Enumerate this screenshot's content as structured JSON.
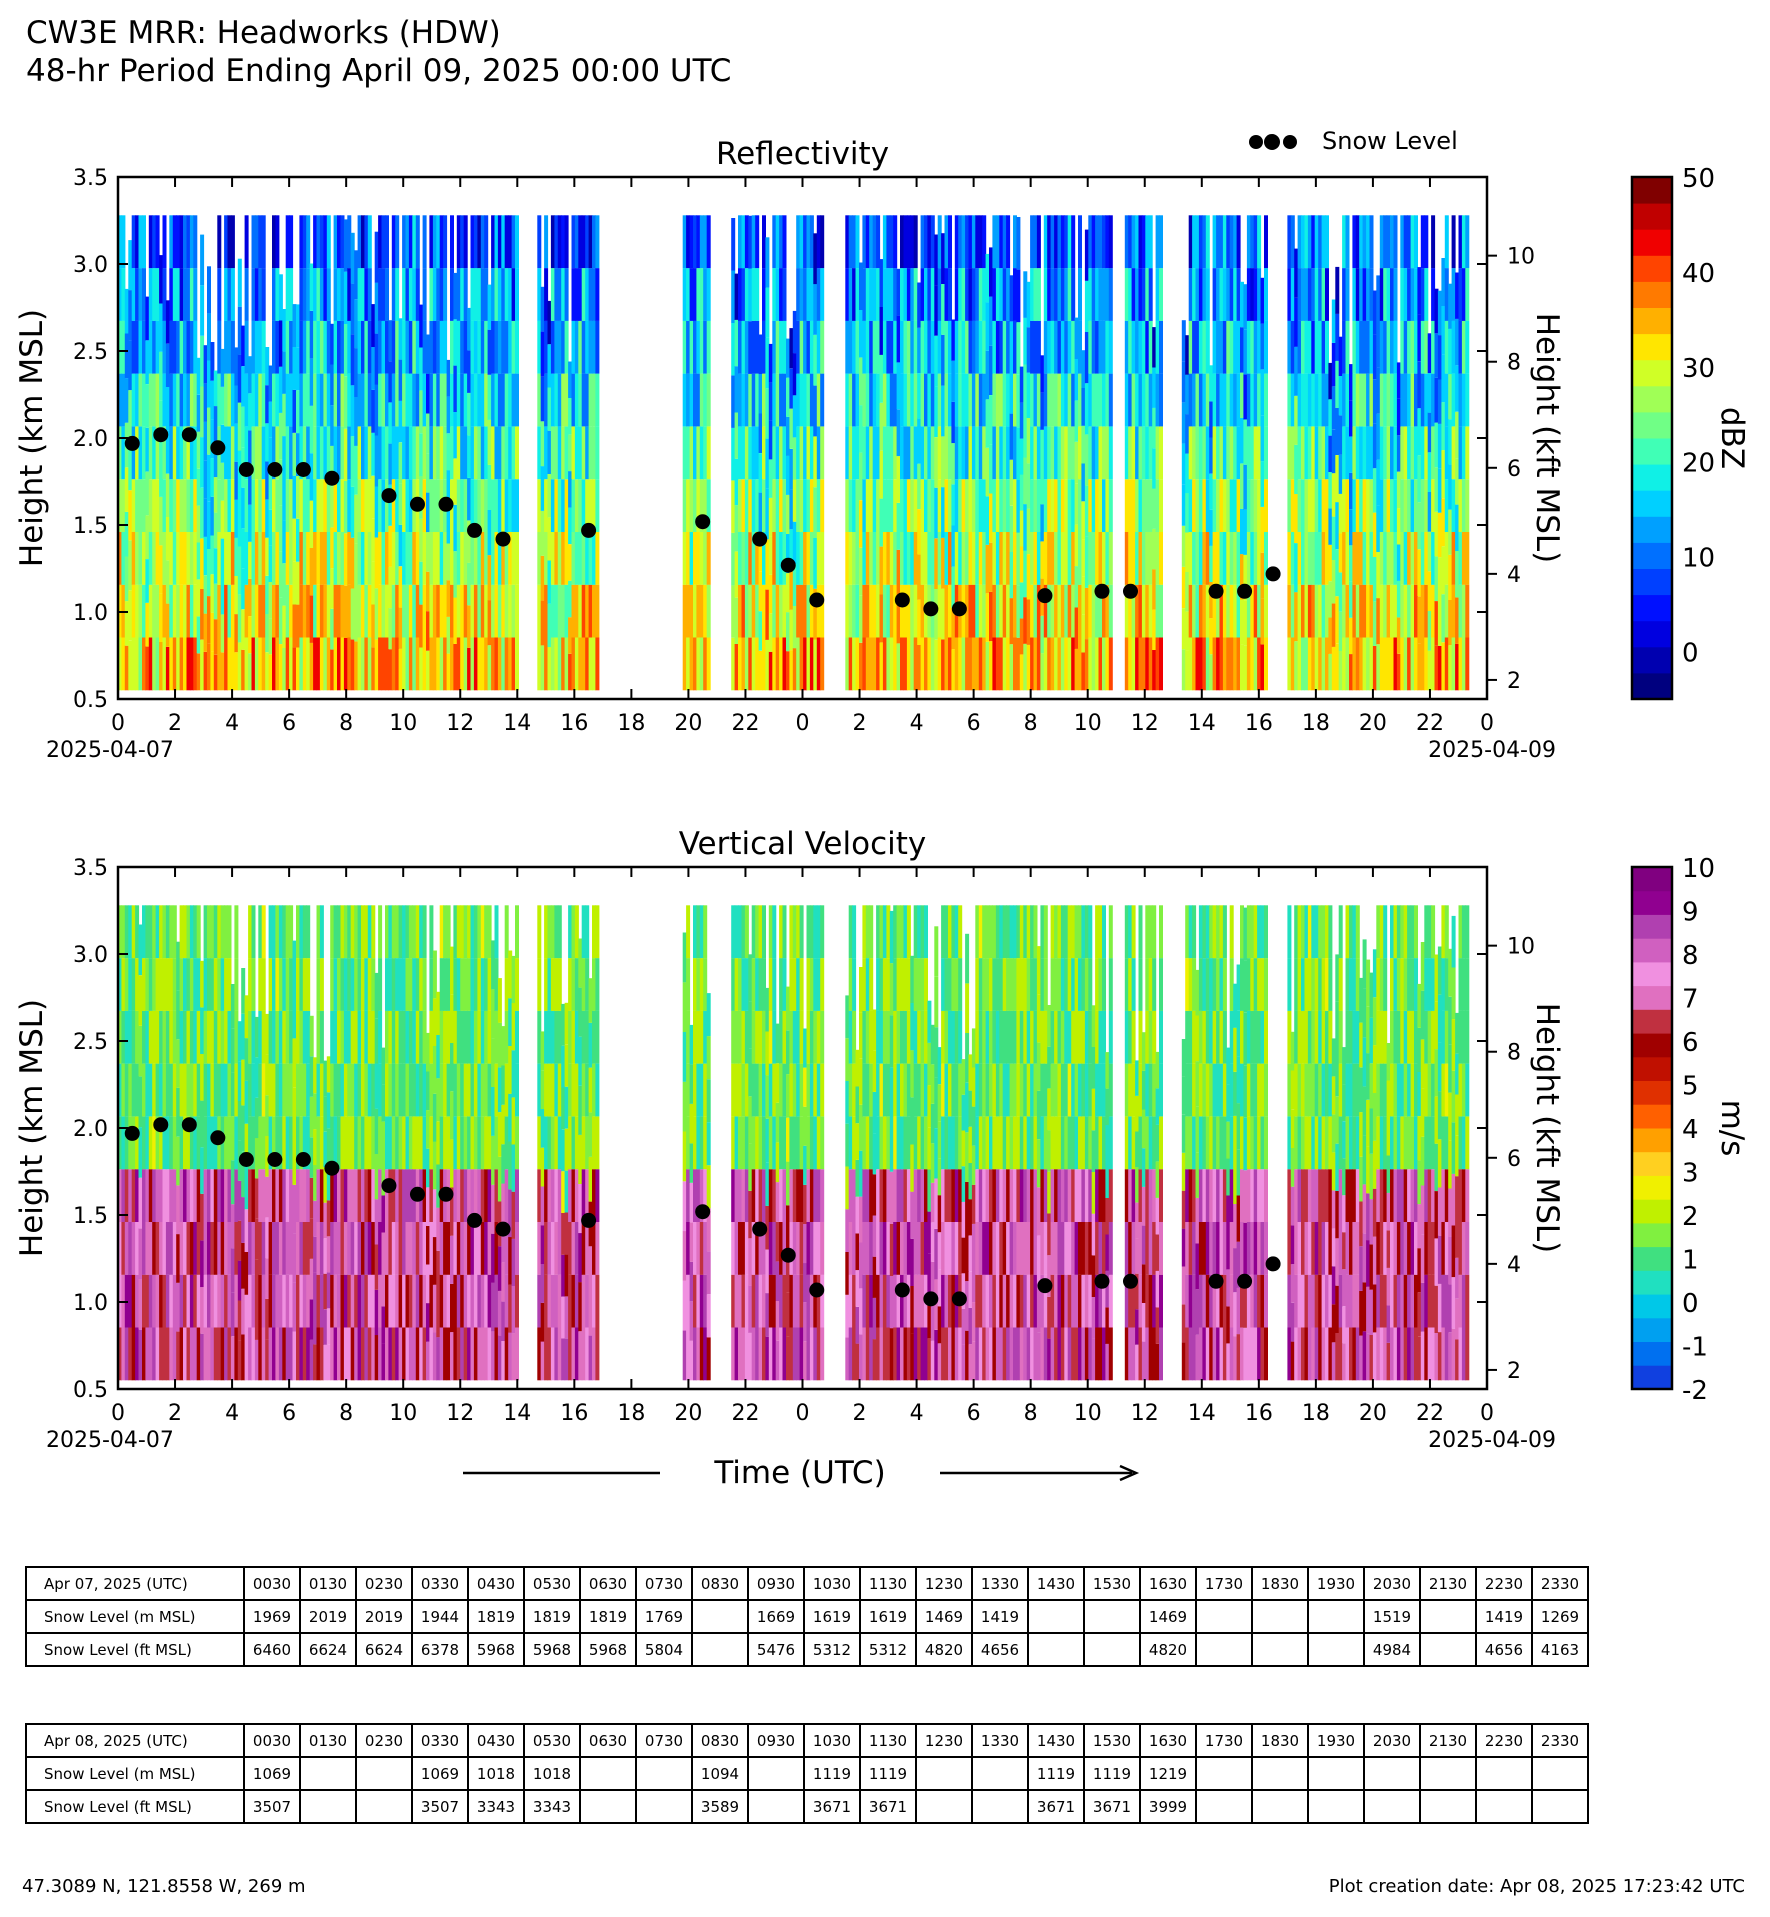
{
  "header": {
    "line1": "CW3E MRR: Headworks (HDW)",
    "line2": "48-hr Period Ending April 09, 2025 00:00 UTC"
  },
  "legend": {
    "label": "Snow Level"
  },
  "shared_x": {
    "label": "Time (UTC)",
    "tick_labels": [
      "0",
      "2",
      "4",
      "6",
      "8",
      "10",
      "12",
      "14",
      "16",
      "18",
      "20",
      "22",
      "0",
      "2",
      "4",
      "6",
      "8",
      "10",
      "12",
      "14",
      "16",
      "18",
      "20",
      "22",
      "0"
    ],
    "date_start": "2025-04-07",
    "date_end": "2025-04-09"
  },
  "chart_data": [
    {
      "type": "heatmap",
      "title": "Reflectivity",
      "ylabel": "Height (km MSL)",
      "ylabel_right": "Height (kft MSL)",
      "ylim": [
        0.5,
        3.5
      ],
      "yticks": [
        "0.5",
        "1.0",
        "1.5",
        "2.0",
        "2.5",
        "3.0",
        "3.5"
      ],
      "yticks_right": [
        "2",
        "4",
        "6",
        "8",
        "10"
      ],
      "xlim_hours": [
        0,
        48
      ],
      "colorbar": {
        "label": "dBZ",
        "range": [
          -5,
          50
        ],
        "ticks": [
          "0",
          "10",
          "20",
          "30",
          "40",
          "50"
        ],
        "colors": [
          "#00007f",
          "#0000b0",
          "#0000e0",
          "#0010ff",
          "#0040ff",
          "#0070ff",
          "#00a0ff",
          "#00d0ff",
          "#10f0e6",
          "#40ffb6",
          "#70ff86",
          "#a0ff56",
          "#d0ff26",
          "#ffe600",
          "#ffb000",
          "#ff7a00",
          "#ff4400",
          "#f00000",
          "#c00000",
          "#800000"
        ]
      },
      "data_segments_hours": [
        [
          0,
          14
        ],
        [
          14.7,
          16.8
        ],
        [
          19.8,
          20.7
        ],
        [
          21.5,
          24.7
        ],
        [
          25.5,
          34.8
        ],
        [
          35.3,
          36.5
        ],
        [
          37.3,
          40.2
        ],
        [
          41.0,
          47.3
        ]
      ]
    },
    {
      "type": "heatmap",
      "title": "Vertical Velocity",
      "ylabel": "Height (km MSL)",
      "ylabel_right": "Height (kft MSL)",
      "ylim": [
        0.5,
        3.5
      ],
      "yticks": [
        "0.5",
        "1.0",
        "1.5",
        "2.0",
        "2.5",
        "3.0",
        "3.5"
      ],
      "yticks_right": [
        "2",
        "4",
        "6",
        "8",
        "10"
      ],
      "xlim_hours": [
        0,
        48
      ],
      "colorbar": {
        "label": "m/s",
        "range": [
          -2,
          10
        ],
        "ticks": [
          "-2",
          "-1",
          "0",
          "1",
          "2",
          "3",
          "4",
          "5",
          "6",
          "7",
          "8",
          "9",
          "10"
        ],
        "colors": [
          "#1040e0",
          "#0070f0",
          "#00a0f0",
          "#00c8e8",
          "#20e0c0",
          "#40e080",
          "#80f040",
          "#c0f000",
          "#f0f000",
          "#ffd020",
          "#ffa000",
          "#ff6000",
          "#e03000",
          "#c01000",
          "#a00000",
          "#c03040",
          "#e070c0",
          "#f090e0",
          "#d060c0",
          "#b040b0",
          "#900090",
          "#800080"
        ]
      },
      "data_segments_hours": [
        [
          0,
          14
        ],
        [
          14.7,
          16.8
        ],
        [
          19.8,
          20.7
        ],
        [
          21.5,
          24.7
        ],
        [
          25.5,
          34.8
        ],
        [
          35.3,
          36.5
        ],
        [
          37.3,
          40.2
        ],
        [
          41.0,
          47.3
        ]
      ]
    }
  ],
  "snow_level_points": {
    "x_hours": [
      0.5,
      1.5,
      2.5,
      3.5,
      4.5,
      5.5,
      6.5,
      7.5,
      9.5,
      10.5,
      11.5,
      12.5,
      13.5,
      16.5,
      20.5,
      22.5,
      23.5,
      24.5,
      27.5,
      28.5,
      29.5,
      32.5,
      34.5,
      35.5,
      38.5,
      39.5,
      40.5
    ],
    "y_km": [
      1.969,
      2.019,
      2.019,
      1.944,
      1.819,
      1.819,
      1.819,
      1.769,
      1.669,
      1.619,
      1.619,
      1.469,
      1.419,
      1.469,
      1.519,
      1.419,
      1.269,
      1.069,
      1.069,
      1.018,
      1.018,
      1.094,
      1.119,
      1.119,
      1.119,
      1.119,
      1.219
    ]
  },
  "tables": [
    {
      "header": "Apr 07, 2025 (UTC)",
      "times": [
        "0030",
        "0130",
        "0230",
        "0330",
        "0430",
        "0530",
        "0630",
        "0730",
        "0830",
        "0930",
        "1030",
        "1130",
        "1230",
        "1330",
        "1430",
        "1530",
        "1630",
        "1730",
        "1830",
        "1930",
        "2030",
        "2130",
        "2230",
        "2330"
      ],
      "rows": [
        {
          "label": "Snow Level (m MSL)",
          "values": [
            "1969",
            "2019",
            "2019",
            "1944",
            "1819",
            "1819",
            "1819",
            "1769",
            "",
            "1669",
            "1619",
            "1619",
            "1469",
            "1419",
            "",
            "",
            "1469",
            "",
            "",
            "",
            "1519",
            "",
            "1419",
            "1269"
          ]
        },
        {
          "label": "Snow Level (ft MSL)",
          "values": [
            "6460",
            "6624",
            "6624",
            "6378",
            "5968",
            "5968",
            "5968",
            "5804",
            "",
            "5476",
            "5312",
            "5312",
            "4820",
            "4656",
            "",
            "",
            "4820",
            "",
            "",
            "",
            "4984",
            "",
            "4656",
            "4163"
          ]
        }
      ]
    },
    {
      "header": "Apr 08, 2025 (UTC)",
      "times": [
        "0030",
        "0130",
        "0230",
        "0330",
        "0430",
        "0530",
        "0630",
        "0730",
        "0830",
        "0930",
        "1030",
        "1130",
        "1230",
        "1330",
        "1430",
        "1530",
        "1630",
        "1730",
        "1830",
        "1930",
        "2030",
        "2130",
        "2230",
        "2330"
      ],
      "rows": [
        {
          "label": "Snow Level (m MSL)",
          "values": [
            "1069",
            "",
            "",
            "1069",
            "1018",
            "1018",
            "",
            "",
            "1094",
            "",
            "1119",
            "1119",
            "",
            "",
            "1119",
            "1119",
            "1219",
            "",
            "",
            "",
            "",
            "",
            "",
            ""
          ]
        },
        {
          "label": "Snow Level (ft MSL)",
          "values": [
            "3507",
            "",
            "",
            "3507",
            "3343",
            "3343",
            "",
            "",
            "3589",
            "",
            "3671",
            "3671",
            "",
            "",
            "3671",
            "3671",
            "3999",
            "",
            "",
            "",
            "",
            "",
            "",
            ""
          ]
        }
      ]
    }
  ],
  "footer": {
    "location": "47.3089 N, 121.8558 W, 269 m",
    "created": "Plot creation date: Apr 08, 2025 17:23:42 UTC"
  }
}
